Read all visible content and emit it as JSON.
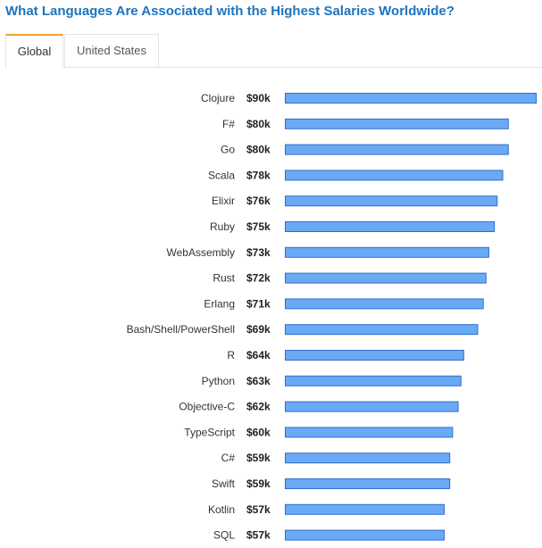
{
  "title": "What Languages Are Associated with the Highest Salaries Worldwide?",
  "tabs": [
    {
      "label": "Global",
      "active": true
    },
    {
      "label": "United States",
      "active": false
    }
  ],
  "colors": {
    "title": "#1d74bd",
    "bar_fill": "#6aaaf5",
    "bar_stroke": "#2d6ecf",
    "active_tab_accent": "#f4a13a"
  },
  "chart_data": {
    "type": "bar",
    "orientation": "horizontal",
    "categories": [
      "Clojure",
      "F#",
      "Go",
      "Scala",
      "Elixir",
      "Ruby",
      "WebAssembly",
      "Rust",
      "Erlang",
      "Bash/Shell/PowerShell",
      "R",
      "Python",
      "Objective-C",
      "TypeScript",
      "C#",
      "Swift",
      "Kotlin",
      "SQL"
    ],
    "values": [
      90,
      80,
      80,
      78,
      76,
      75,
      73,
      72,
      71,
      69,
      64,
      63,
      62,
      60,
      59,
      59,
      57,
      57
    ],
    "value_labels": [
      "$90k",
      "$80k",
      "$80k",
      "$78k",
      "$76k",
      "$75k",
      "$73k",
      "$72k",
      "$71k",
      "$69k",
      "$64k",
      "$63k",
      "$62k",
      "$60k",
      "$59k",
      "$59k",
      "$57k",
      "$57k"
    ],
    "unit": "$k",
    "xlim": [
      0,
      90
    ],
    "grid": false,
    "legend": "none"
  }
}
